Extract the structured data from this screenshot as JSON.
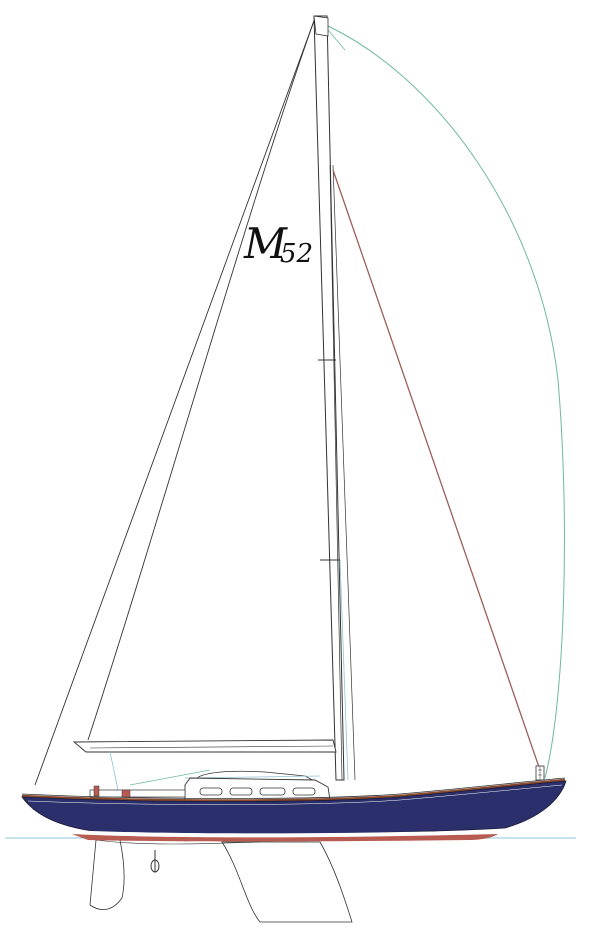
{
  "sail_mark": {
    "letter": "M",
    "number": "52"
  },
  "colors": {
    "hull": "#2b2f6b",
    "boot_stripe": "#b85c52",
    "waterline": "#8fc4d8",
    "spinnaker": "#6fb8a0",
    "backstay": "#9c5f5a",
    "outline": "#222222",
    "toe_rail": "#8a4a2e"
  }
}
